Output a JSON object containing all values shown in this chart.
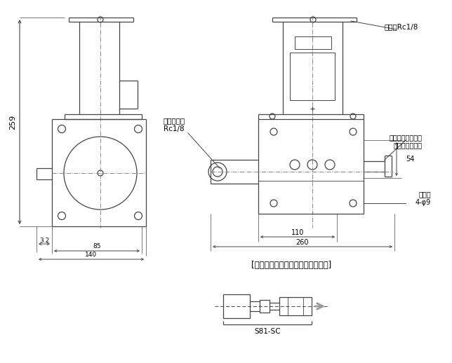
{
  "bg": "white",
  "lc": "#444444",
  "cl": "#888888",
  "dim_259": "259",
  "dim_140": "140",
  "dim_85": "85",
  "dim_32": "3.2",
  "dim_260": "260",
  "dim_110": "110",
  "dim_54": "54",
  "label_discharge": "吐出口Rc1/8",
  "label_air_inlet": "エアー入口\nRc1/8",
  "label_air_valve": "エアー抜きバルブ",
  "label_nipple": "補給口ニップル",
  "label_mount": "取付穴\n4-φ9",
  "label_parts": "[吐出口に接続するための配管部品]",
  "label_s81sc": "S81-SC"
}
